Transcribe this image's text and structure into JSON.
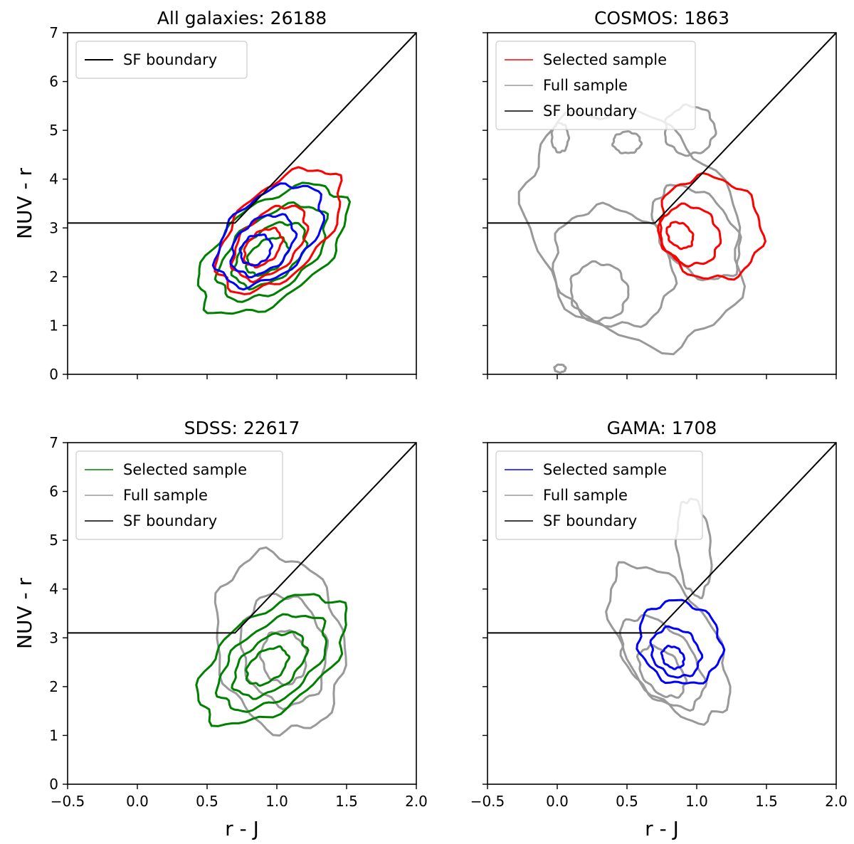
{
  "figure": {
    "x_axis_label": "r - J",
    "y_axis_label": "NUV - r",
    "x_tick_labels": [
      "−0.5",
      "0.0",
      "0.5",
      "1.0",
      "1.5",
      "2.0"
    ],
    "y_tick_labels": [
      "0",
      "1",
      "2",
      "3",
      "4",
      "5",
      "6",
      "7"
    ]
  },
  "chart_data": [
    {
      "type": "contour",
      "title": "All galaxies: 26188",
      "xlim": [
        -0.5,
        2.0
      ],
      "ylim": [
        0,
        7
      ],
      "xlabel": "",
      "ylabel": "NUV - r",
      "show_x_ticklabels": false,
      "show_y_ticklabels": true,
      "legend": {
        "position": "top-left",
        "entries": [
          {
            "label": "SF boundary",
            "color": "#000000"
          }
        ]
      },
      "boundary": {
        "color": "#000000",
        "points": [
          [
            -0.5,
            3.1
          ],
          [
            0.7,
            3.1
          ],
          [
            2.0,
            7.0
          ]
        ]
      },
      "series": [
        {
          "color": "#008000",
          "contours": [
            {
              "cx": 0.97,
              "cy": 2.55,
              "rx": 0.62,
              "ry": 0.95,
              "angle": -38
            },
            {
              "cx": 0.97,
              "cy": 2.5,
              "rx": 0.45,
              "ry": 0.72,
              "angle": -38
            },
            {
              "cx": 0.95,
              "cy": 2.45,
              "rx": 0.3,
              "ry": 0.5,
              "angle": -38
            },
            {
              "cx": 0.93,
              "cy": 2.42,
              "rx": 0.17,
              "ry": 0.3,
              "angle": -38
            }
          ]
        },
        {
          "color": "#ff0000",
          "contours": [
            {
              "cx": 1.02,
              "cy": 2.95,
              "rx": 0.55,
              "ry": 0.85,
              "angle": -45
            },
            {
              "cx": 0.95,
              "cy": 2.7,
              "rx": 0.32,
              "ry": 0.55,
              "angle": -45
            },
            {
              "cx": 0.9,
              "cy": 2.6,
              "rx": 0.16,
              "ry": 0.3,
              "angle": -45
            }
          ]
        },
        {
          "color": "#0000ff",
          "contours": [
            {
              "cx": 0.95,
              "cy": 2.85,
              "rx": 0.45,
              "ry": 0.78,
              "angle": -42
            },
            {
              "cx": 0.9,
              "cy": 2.65,
              "rx": 0.26,
              "ry": 0.5,
              "angle": -42
            },
            {
              "cx": 0.85,
              "cy": 2.55,
              "rx": 0.12,
              "ry": 0.28,
              "angle": -42
            }
          ]
        }
      ]
    },
    {
      "type": "contour",
      "title": "COSMOS: 1863",
      "xlim": [
        -0.5,
        2.0
      ],
      "ylim": [
        0,
        7
      ],
      "xlabel": "",
      "ylabel": "",
      "show_x_ticklabels": false,
      "show_y_ticklabels": false,
      "legend": {
        "position": "top-left",
        "entries": [
          {
            "label": "Selected sample",
            "color": "#ff0000"
          },
          {
            "label": "Full sample",
            "color": "#999999"
          },
          {
            "label": "SF boundary",
            "color": "#000000"
          }
        ]
      },
      "boundary": {
        "color": "#000000",
        "points": [
          [
            -0.5,
            3.1
          ],
          [
            0.7,
            3.1
          ],
          [
            2.0,
            7.0
          ]
        ]
      },
      "series": [
        {
          "color": "#999999",
          "contours": [
            {
              "cx": 0.55,
              "cy": 3.0,
              "rx": 0.7,
              "ry": 2.6,
              "angle": -35
            },
            {
              "cx": 0.4,
              "cy": 2.2,
              "rx": 0.4,
              "ry": 1.3,
              "angle": -45
            },
            {
              "cx": 0.3,
              "cy": 1.7,
              "rx": 0.2,
              "ry": 0.6,
              "angle": -45
            },
            {
              "cx": 1.0,
              "cy": 2.9,
              "rx": 0.25,
              "ry": 1.1,
              "angle": -40
            },
            {
              "cx": 0.95,
              "cy": 5.0,
              "rx": 0.18,
              "ry": 0.5,
              "angle": -20
            },
            {
              "cx": 0.5,
              "cy": 4.75,
              "rx": 0.1,
              "ry": 0.22,
              "angle": 0
            },
            {
              "cx": 0.02,
              "cy": 4.85,
              "rx": 0.06,
              "ry": 0.3,
              "angle": 0
            },
            {
              "cx": 0.02,
              "cy": 0.12,
              "rx": 0.04,
              "ry": 0.08,
              "angle": 0
            }
          ]
        },
        {
          "color": "#ff0000",
          "contours": [
            {
              "cx": 1.1,
              "cy": 3.0,
              "rx": 0.35,
              "ry": 1.1,
              "angle": -45
            },
            {
              "cx": 0.95,
              "cy": 2.85,
              "rx": 0.2,
              "ry": 0.65,
              "angle": -45
            },
            {
              "cx": 0.88,
              "cy": 2.85,
              "rx": 0.08,
              "ry": 0.3,
              "angle": -45
            }
          ]
        }
      ]
    },
    {
      "type": "contour",
      "title": "SDSS: 22617",
      "xlim": [
        -0.5,
        2.0
      ],
      "ylim": [
        0,
        7
      ],
      "xlabel": "r - J",
      "ylabel": "NUV - r",
      "show_x_ticklabels": true,
      "show_y_ticklabels": true,
      "legend": {
        "position": "top-left",
        "entries": [
          {
            "label": "Selected sample",
            "color": "#008000"
          },
          {
            "label": "Full sample",
            "color": "#999999"
          },
          {
            "label": "SF boundary",
            "color": "#000000"
          }
        ]
      },
      "boundary": {
        "color": "#000000",
        "points": [
          [
            -0.5,
            3.1
          ],
          [
            0.7,
            3.1
          ],
          [
            2.0,
            7.0
          ]
        ]
      },
      "series": [
        {
          "color": "#999999",
          "contours": [
            {
              "cx": 1.02,
              "cy": 2.9,
              "rx": 0.45,
              "ry": 1.85,
              "angle": -12
            },
            {
              "cx": 1.05,
              "cy": 2.75,
              "rx": 0.3,
              "ry": 1.15,
              "angle": -12
            },
            {
              "cx": 1.05,
              "cy": 2.6,
              "rx": 0.16,
              "ry": 0.55,
              "angle": -12
            }
          ]
        },
        {
          "color": "#008000",
          "contours": [
            {
              "cx": 0.97,
              "cy": 2.55,
              "rx": 0.62,
              "ry": 0.95,
              "angle": -38
            },
            {
              "cx": 0.97,
              "cy": 2.5,
              "rx": 0.45,
              "ry": 0.72,
              "angle": -38
            },
            {
              "cx": 0.95,
              "cy": 2.45,
              "rx": 0.3,
              "ry": 0.5,
              "angle": -38
            },
            {
              "cx": 0.93,
              "cy": 2.42,
              "rx": 0.17,
              "ry": 0.3,
              "angle": -38
            }
          ]
        }
      ]
    },
    {
      "type": "contour",
      "title": "GAMA: 1708",
      "xlim": [
        -0.5,
        2.0
      ],
      "ylim": [
        0,
        7
      ],
      "xlabel": "r - J",
      "ylabel": "",
      "show_x_ticklabels": true,
      "show_y_ticklabels": false,
      "legend": {
        "position": "top-left",
        "entries": [
          {
            "label": "Selected sample",
            "color": "#0000ff"
          },
          {
            "label": "Full sample",
            "color": "#999999"
          },
          {
            "label": "SF boundary",
            "color": "#000000"
          }
        ]
      },
      "boundary": {
        "color": "#000000",
        "points": [
          [
            -0.5,
            3.1
          ],
          [
            0.7,
            3.1
          ],
          [
            2.0,
            7.0
          ]
        ]
      },
      "series": [
        {
          "color": "#999999",
          "contours": [
            {
              "cx": 0.8,
              "cy": 2.9,
              "rx": 0.32,
              "ry": 1.8,
              "angle": -32
            },
            {
              "cx": 0.75,
              "cy": 2.5,
              "rx": 0.22,
              "ry": 1.1,
              "angle": -40
            },
            {
              "cx": 0.75,
              "cy": 2.3,
              "rx": 0.13,
              "ry": 0.6,
              "angle": -40
            },
            {
              "cx": 0.98,
              "cy": 4.85,
              "rx": 0.12,
              "ry": 1.0,
              "angle": -5
            }
          ]
        },
        {
          "color": "#0000ff",
          "contours": [
            {
              "cx": 0.88,
              "cy": 2.9,
              "rx": 0.28,
              "ry": 0.9,
              "angle": -45
            },
            {
              "cx": 0.85,
              "cy": 2.7,
              "rx": 0.16,
              "ry": 0.55,
              "angle": -45
            },
            {
              "cx": 0.83,
              "cy": 2.6,
              "rx": 0.07,
              "ry": 0.25,
              "angle": -45
            }
          ]
        }
      ]
    }
  ]
}
